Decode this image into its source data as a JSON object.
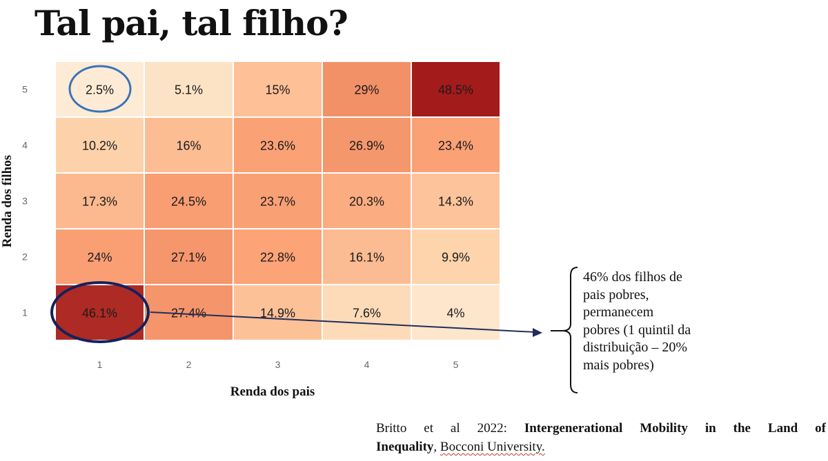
{
  "title": "Tal pai, tal filho?",
  "chart_data": {
    "type": "heatmap",
    "xlabel": "Renda dos pais",
    "ylabel": "Renda dos filhos",
    "x_categories": [
      "1",
      "2",
      "3",
      "4",
      "5"
    ],
    "y_categories": [
      "1",
      "2",
      "3",
      "4",
      "5"
    ],
    "cells": [
      [
        "46.1%",
        "27.4%",
        "14.9%",
        "7.6%",
        "4%"
      ],
      [
        "24%",
        "27.1%",
        "22.8%",
        "16.1%",
        "9.9%"
      ],
      [
        "17.3%",
        "24.5%",
        "23.7%",
        "20.3%",
        "14.3%"
      ],
      [
        "10.2%",
        "16%",
        "23.6%",
        "26.9%",
        "23.4%"
      ],
      [
        "2.5%",
        "5.1%",
        "15%",
        "29%",
        "48.5%"
      ]
    ],
    "values": [
      [
        46.1,
        27.4,
        14.9,
        7.6,
        4
      ],
      [
        24,
        27.1,
        22.8,
        16.1,
        9.9
      ],
      [
        17.3,
        24.5,
        23.7,
        20.3,
        14.3
      ],
      [
        10.2,
        16,
        23.6,
        26.9,
        23.4
      ],
      [
        2.5,
        5.1,
        15,
        29,
        48.5
      ]
    ],
    "colorscale": [
      "#fdf2e3",
      "#fdd7b0",
      "#fca478",
      "#ef8a62",
      "#a31b1b"
    ],
    "highlighted_cells": [
      {
        "row": "5",
        "col": "1",
        "color": "#3a73b8"
      },
      {
        "row": "1",
        "col": "1",
        "color": "#14215c"
      }
    ]
  },
  "annotation": {
    "lines": [
      "46% dos filhos de",
      "pais pobres,",
      "permanecem",
      "pobres (1 quintil da",
      "distribuição – 20%",
      "mais pobres)"
    ],
    "arrow_color": "#1f2d5c"
  },
  "citation": {
    "prefix": "Britto et al 2022: ",
    "bold_part1": "Intergenerational Mobility in the Land of",
    "bold_part2": "Inequality",
    "sep": ", ",
    "institution": "Bocconi University."
  }
}
